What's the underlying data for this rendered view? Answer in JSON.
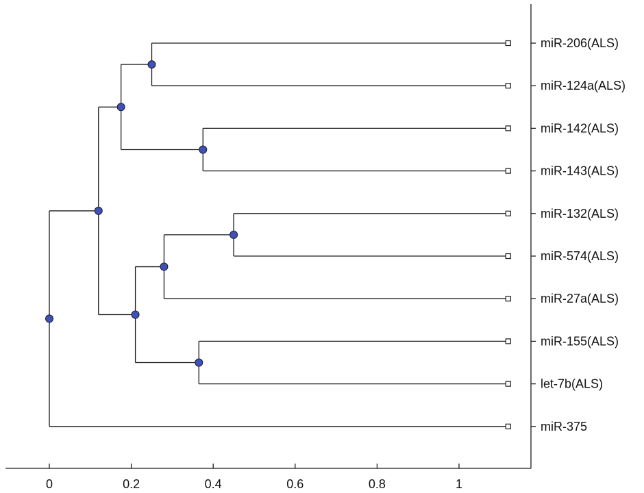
{
  "chart_data": {
    "type": "dendrogram",
    "title": "",
    "xlabel": "",
    "ylabel": "",
    "orientation": "root-left",
    "xlim": [
      -0.1,
      1.18
    ],
    "x_ticks": [
      0,
      0.2,
      0.4,
      0.6,
      0.8,
      1
    ],
    "x_tick_labels": [
      "0",
      "0.2",
      "0.4",
      "0.6",
      "0.8",
      "1"
    ],
    "leaf_distance": 1.12,
    "node_color": "#3f51b5",
    "leaves": [
      "miR-206(ALS)",
      "miR-124a(ALS)",
      "miR-142(ALS)",
      "miR-143(ALS)",
      "miR-132(ALS)",
      "miR-574(ALS)",
      "miR-27a(ALS)",
      "miR-155(ALS)",
      "let-7b(ALS)",
      "miR-375"
    ],
    "nodes": [
      {
        "id": "n1",
        "height": 0.25,
        "children": [
          "miR-206(ALS)",
          "miR-124a(ALS)"
        ]
      },
      {
        "id": "n2",
        "height": 0.375,
        "children": [
          "miR-142(ALS)",
          "miR-143(ALS)"
        ]
      },
      {
        "id": "n3",
        "height": 0.175,
        "children": [
          "n1",
          "n2"
        ]
      },
      {
        "id": "n4",
        "height": 0.45,
        "children": [
          "miR-132(ALS)",
          "miR-574(ALS)"
        ]
      },
      {
        "id": "n5",
        "height": 0.28,
        "children": [
          "n4",
          "miR-27a(ALS)"
        ]
      },
      {
        "id": "n6",
        "height": 0.365,
        "children": [
          "miR-155(ALS)",
          "let-7b(ALS)"
        ]
      },
      {
        "id": "n7",
        "height": 0.21,
        "children": [
          "n5",
          "n6"
        ]
      },
      {
        "id": "n8",
        "height": 0.12,
        "children": [
          "n3",
          "n7"
        ]
      },
      {
        "id": "root",
        "height": 0.0,
        "children": [
          "n8",
          "miR-375"
        ]
      }
    ]
  }
}
